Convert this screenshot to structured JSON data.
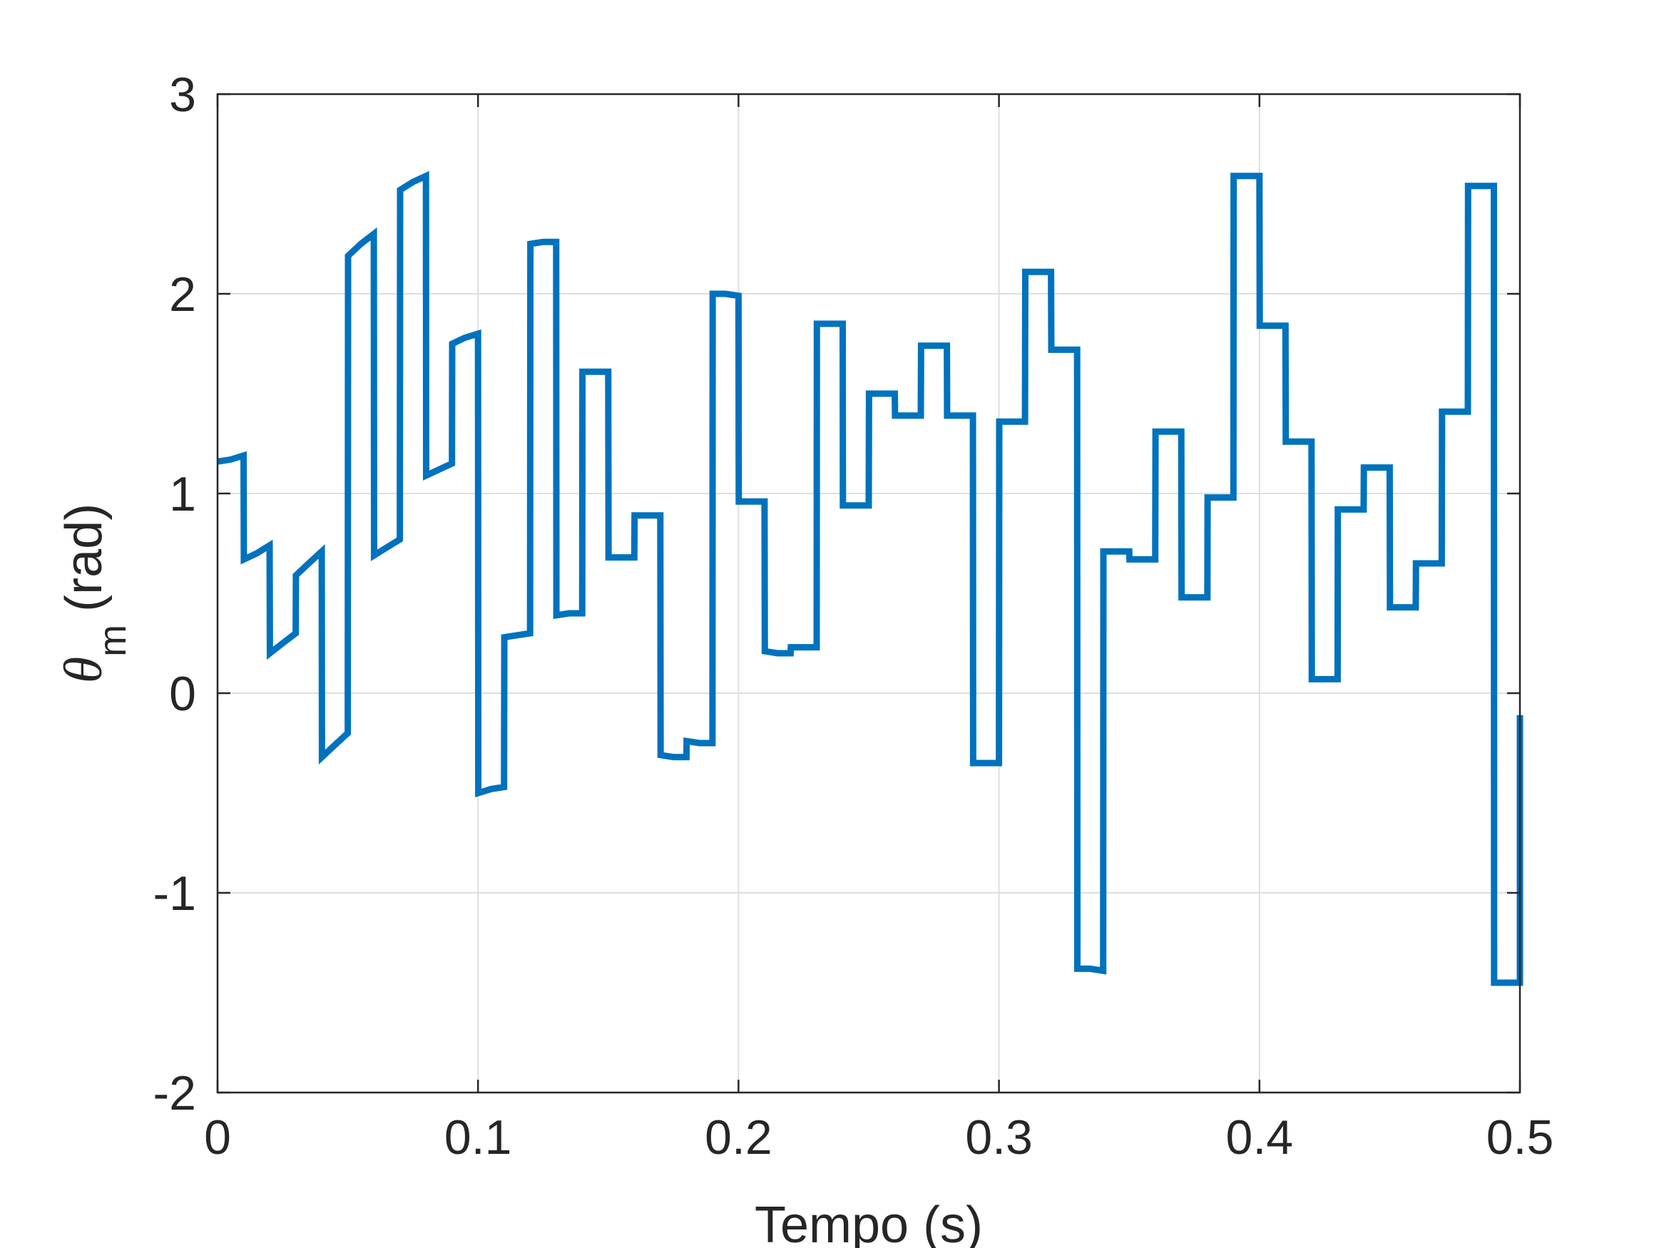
{
  "chart_data": {
    "type": "line",
    "step": true,
    "xlabel": "Tempo (s)",
    "ylabel": {
      "symbol": "θ",
      "subscript": "m",
      "unit": "(rad)"
    },
    "xlim": [
      0,
      0.5
    ],
    "ylim": [
      -2,
      3
    ],
    "xticks": [
      0,
      0.1,
      0.2,
      0.3,
      0.4,
      0.5
    ],
    "xtick_labels": [
      "0",
      "0.1",
      "0.2",
      "0.3",
      "0.4",
      "0.5"
    ],
    "yticks": [
      -2,
      -1,
      0,
      1,
      2,
      3
    ],
    "ytick_labels": [
      "-2",
      "-1",
      "0",
      "1",
      "2",
      "3"
    ],
    "grid": true,
    "colors": {
      "line": "#0072BD",
      "grid": "#dedede",
      "axes": "#262626"
    },
    "series": [
      {
        "x": [
          0,
          0.005,
          0.01,
          0.0101,
          0.015,
          0.02,
          0.0201,
          0.025,
          0.03,
          0.0301,
          0.035,
          0.04,
          0.0401,
          0.045,
          0.05,
          0.0501,
          0.055,
          0.06,
          0.0601,
          0.065,
          0.07,
          0.0701,
          0.075,
          0.08,
          0.0801,
          0.085,
          0.09,
          0.0901,
          0.095,
          0.1,
          0.1001,
          0.105,
          0.11,
          0.1101,
          0.115,
          0.12,
          0.1201,
          0.125,
          0.13,
          0.1301,
          0.135,
          0.14,
          0.1401,
          0.145,
          0.15,
          0.1501,
          0.155,
          0.16,
          0.1601,
          0.165,
          0.17,
          0.1701,
          0.175,
          0.18,
          0.1801,
          0.185,
          0.19,
          0.1901,
          0.195,
          0.2,
          0.2001,
          0.205,
          0.21,
          0.2101,
          0.215,
          0.22,
          0.2201,
          0.225,
          0.23,
          0.2301,
          0.235,
          0.24,
          0.2401,
          0.245,
          0.25,
          0.2501,
          0.255,
          0.26,
          0.2601,
          0.265,
          0.27,
          0.2701,
          0.275,
          0.28,
          0.2801,
          0.285,
          0.29,
          0.2901,
          0.295,
          0.3,
          0.3001,
          0.305,
          0.31,
          0.3101,
          0.315,
          0.32,
          0.3201,
          0.325,
          0.33,
          0.3301,
          0.335,
          0.34,
          0.3401,
          0.345,
          0.35,
          0.3501,
          0.355,
          0.36,
          0.3601,
          0.365,
          0.37,
          0.3701,
          0.375,
          0.38,
          0.3801,
          0.385,
          0.39,
          0.3901,
          0.395,
          0.4,
          0.4001,
          0.405,
          0.41,
          0.4101,
          0.415,
          0.42,
          0.4201,
          0.425,
          0.43,
          0.4301,
          0.435,
          0.44,
          0.4401,
          0.445,
          0.45,
          0.4501,
          0.455,
          0.46,
          0.4601,
          0.465,
          0.47,
          0.4701,
          0.475,
          0.48,
          0.4801,
          0.485,
          0.49,
          0.4901,
          0.495,
          0.5,
          0.5001
        ],
        "y": [
          1.16,
          1.17,
          1.19,
          0.67,
          0.7,
          0.74,
          0.2,
          0.25,
          0.3,
          0.59,
          0.65,
          0.71,
          -0.32,
          -0.26,
          -0.2,
          2.19,
          2.25,
          2.3,
          0.69,
          0.73,
          0.77,
          2.52,
          2.56,
          2.59,
          1.09,
          1.12,
          1.15,
          1.75,
          1.78,
          1.8,
          -0.5,
          -0.48,
          -0.47,
          0.28,
          0.29,
          0.3,
          2.25,
          2.26,
          2.26,
          0.39,
          0.4,
          0.4,
          1.61,
          1.61,
          1.61,
          0.68,
          0.68,
          0.68,
          0.89,
          0.89,
          0.89,
          -0.31,
          -0.32,
          -0.32,
          -0.24,
          -0.25,
          -0.25,
          2.0,
          2.0,
          1.99,
          0.96,
          0.96,
          0.96,
          0.21,
          0.2,
          0.2,
          0.23,
          0.23,
          0.23,
          1.85,
          1.85,
          1.85,
          0.94,
          0.94,
          0.94,
          1.5,
          1.5,
          1.5,
          1.39,
          1.39,
          1.39,
          1.74,
          1.74,
          1.74,
          1.39,
          1.39,
          1.39,
          -0.35,
          -0.35,
          -0.35,
          1.36,
          1.36,
          1.36,
          2.11,
          2.11,
          2.11,
          1.72,
          1.72,
          1.72,
          -1.38,
          -1.38,
          -1.39,
          0.71,
          0.71,
          0.71,
          0.67,
          0.67,
          0.67,
          1.31,
          1.31,
          1.31,
          0.48,
          0.48,
          0.48,
          0.98,
          0.98,
          0.98,
          2.59,
          2.59,
          2.59,
          1.84,
          1.84,
          1.84,
          1.26,
          1.26,
          1.26,
          0.07,
          0.07,
          0.07,
          0.92,
          0.92,
          0.92,
          1.13,
          1.13,
          1.13,
          0.43,
          0.43,
          0.43,
          0.65,
          0.65,
          0.65,
          1.41,
          1.41,
          1.41,
          2.54,
          2.54,
          2.54,
          -1.45,
          -1.45,
          -1.45,
          -0.11
        ]
      }
    ]
  }
}
